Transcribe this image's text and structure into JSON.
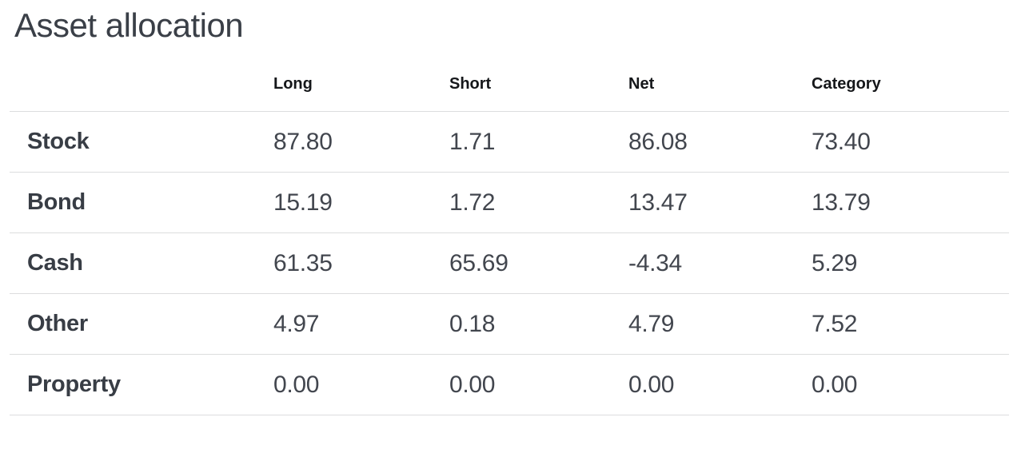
{
  "page": {
    "title": "Asset allocation"
  },
  "table": {
    "columns": [
      "Long",
      "Short",
      "Net",
      "Category"
    ],
    "rows": [
      {
        "label": "Stock",
        "values": [
          "87.80",
          "1.71",
          "86.08",
          "73.40"
        ]
      },
      {
        "label": "Bond",
        "values": [
          "15.19",
          "1.72",
          "13.47",
          "13.79"
        ]
      },
      {
        "label": "Cash",
        "values": [
          "61.35",
          "65.69",
          "-4.34",
          "5.29"
        ]
      },
      {
        "label": "Other",
        "values": [
          "4.97",
          "0.18",
          "4.79",
          "7.52"
        ]
      },
      {
        "label": "Property",
        "values": [
          "0.00",
          "0.00",
          "0.00",
          "0.00"
        ]
      }
    ]
  },
  "colors": {
    "title_text": "#3a3f47",
    "header_text": "#15171a",
    "row_label_text": "#383d45",
    "value_text": "#42464e",
    "row_border": "#dcddde",
    "background": "#ffffff"
  },
  "chart_data": {
    "type": "table",
    "title": "Asset allocation",
    "columns": [
      "Long",
      "Short",
      "Net",
      "Category"
    ],
    "rows": [
      {
        "label": "Stock",
        "Long": 87.8,
        "Short": 1.71,
        "Net": 86.08,
        "Category": 73.4
      },
      {
        "label": "Bond",
        "Long": 15.19,
        "Short": 1.72,
        "Net": 13.47,
        "Category": 13.79
      },
      {
        "label": "Cash",
        "Long": 61.35,
        "Short": 65.69,
        "Net": -4.34,
        "Category": 5.29
      },
      {
        "label": "Other",
        "Long": 4.97,
        "Short": 0.18,
        "Net": 4.79,
        "Category": 7.52
      },
      {
        "label": "Property",
        "Long": 0.0,
        "Short": 0.0,
        "Net": 0.0,
        "Category": 0.0
      }
    ]
  }
}
